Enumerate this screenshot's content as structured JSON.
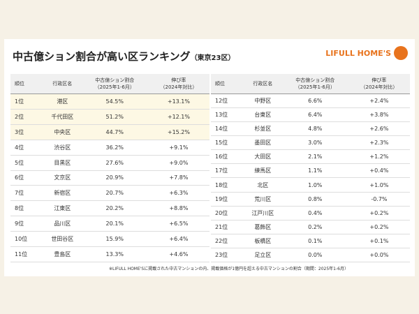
{
  "header": {
    "title": "中古億ション割合が高い区ランキング",
    "subtitle": "（東京23区）",
    "logo": "LIFULL HOME'S"
  },
  "columns": [
    "順位",
    "行政区名",
    [
      "中古億ション割合",
      "（2025年1-6月）"
    ],
    [
      "伸び率",
      "（2024年対比）"
    ]
  ],
  "tables": [
    {
      "rows": [
        [
          "1位",
          "港区",
          "54.5%",
          "+13.1%"
        ],
        [
          "2位",
          "千代田区",
          "51.2%",
          "+12.1%"
        ],
        [
          "3位",
          "中央区",
          "44.7%",
          "+15.2%"
        ],
        [
          "4位",
          "渋谷区",
          "36.2%",
          "+9.1%"
        ],
        [
          "5位",
          "目黒区",
          "27.6%",
          "+9.0%"
        ],
        [
          "6位",
          "文京区",
          "20.9%",
          "+7.8%"
        ],
        [
          "7位",
          "新宿区",
          "20.7%",
          "+6.3%"
        ],
        [
          "8位",
          "江東区",
          "20.2%",
          "+8.8%"
        ],
        [
          "9位",
          "品川区",
          "20.1%",
          "+6.5%"
        ],
        [
          "10位",
          "世田谷区",
          "15.9%",
          "+6.4%"
        ],
        [
          "11位",
          "豊島区",
          "13.3%",
          "+4.6%"
        ]
      ]
    },
    {
      "rows": [
        [
          "12位",
          "中野区",
          "6.6%",
          "+2.4%"
        ],
        [
          "13位",
          "台東区",
          "6.4%",
          "+3.8%"
        ],
        [
          "14位",
          "杉並区",
          "4.8%",
          "+2.6%"
        ],
        [
          "15位",
          "墨田区",
          "3.0%",
          "+2.3%"
        ],
        [
          "16位",
          "大田区",
          "2.1%",
          "+1.2%"
        ],
        [
          "17位",
          "練馬区",
          "1.1%",
          "+0.4%"
        ],
        [
          "18位",
          "北区",
          "1.0%",
          "+1.0%"
        ],
        [
          "19位",
          "荒川区",
          "0.8%",
          "-0.7%"
        ],
        [
          "20位",
          "江戸川区",
          "0.4%",
          "+0.2%"
        ],
        [
          "21位",
          "葛飾区",
          "0.2%",
          "+0.2%"
        ],
        [
          "22位",
          "板橋区",
          "0.1%",
          "+0.1%"
        ],
        [
          "23位",
          "足立区",
          "0.0%",
          "+0.0%"
        ]
      ]
    }
  ],
  "footnote": "※LIFULL HOME'Sに掲載された中古マンションの内、掲載価格が1億円を超える中古マンションの割合（期間：2025年1-6月）"
}
